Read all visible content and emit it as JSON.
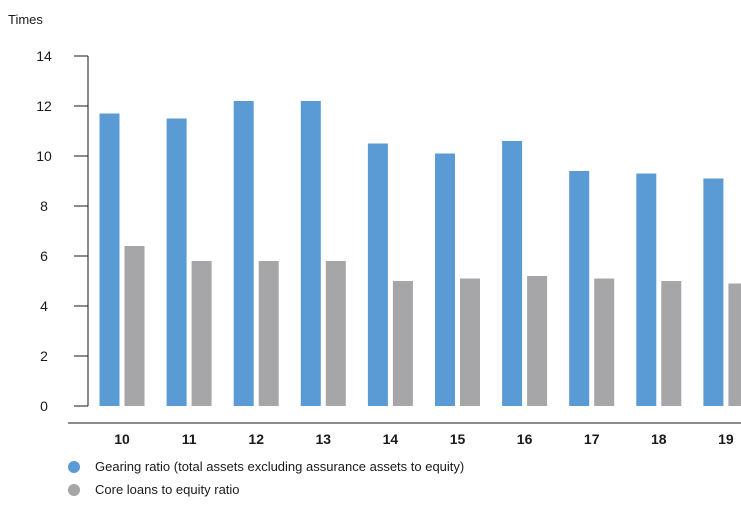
{
  "chart_data": {
    "type": "bar",
    "unit_label": "Times",
    "title": "",
    "xlabel": "",
    "ylabel": "Times",
    "ylim": [
      0,
      14
    ],
    "yticks": [
      0,
      2,
      4,
      6,
      8,
      10,
      12,
      14
    ],
    "grid": false,
    "legend_position": "bottom-left",
    "categories": [
      "10",
      "11",
      "12",
      "13",
      "14",
      "15",
      "16",
      "17",
      "18",
      "19"
    ],
    "series": [
      {
        "name": "Gearing ratio (total assets excluding assurance assets to equity)",
        "color": "#5b9bd5",
        "values": [
          11.7,
          11.5,
          12.2,
          12.2,
          10.5,
          10.1,
          10.6,
          9.4,
          9.3,
          9.1
        ]
      },
      {
        "name": "Core loans to equity ratio",
        "color": "#a6a6a9",
        "values": [
          6.4,
          5.8,
          5.8,
          5.8,
          5.0,
          5.1,
          5.2,
          5.1,
          5.0,
          4.9
        ]
      }
    ]
  }
}
